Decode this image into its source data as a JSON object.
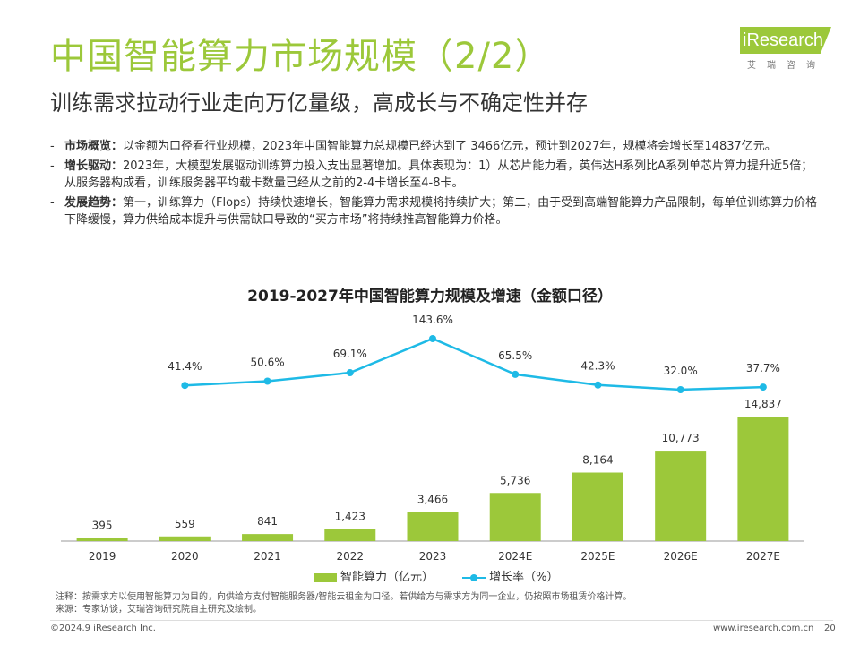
{
  "header": {
    "title": "中国智能算力市场规模（2/2）",
    "subtitle": "训练需求拉动行业走向万亿量级，高成长与不确定性并存"
  },
  "logo": {
    "word": "iResearch",
    "cn": "艾瑞咨询"
  },
  "bullets": [
    {
      "dash": "-",
      "head": "市场概览：",
      "text": "以金额为口径看行业规模，2023年中国智能算力总规模已经达到了 3466亿元，预计到2027年，规模将会增长至14837亿元。"
    },
    {
      "dash": "-",
      "head": "增长驱动：",
      "text": "2023年，大模型发展驱动训练算力投入支出显著增加。具体表现为：1）从芯片能力看，英伟达H系列比A系列单芯片算力提升近5倍；从服务器构成看，训练服务器平均载卡数量已经从之前的2-4卡增长至4-8卡。"
    },
    {
      "dash": "-",
      "head": "发展趋势：",
      "text": "第一，训练算力（Flops）持续快速增长，智能算力需求规模将持续扩大；第二，由于受到高端智能算力产品限制，每单位训练算力价格下降缓慢，算力供给成本提升与供需缺口导致的“买方市场”将持续推高智能算力价格。"
    }
  ],
  "chart_data": {
    "type": "bar",
    "title": "2019-2027年中国智能算力规模及增速（金额口径）",
    "categories": [
      "2019",
      "2020",
      "2021",
      "2022",
      "2023",
      "2024E",
      "2025E",
      "2026E",
      "2027E"
    ],
    "series": [
      {
        "name": "智能算力（亿元）",
        "type": "bar",
        "values": [
          395,
          559,
          841,
          1423,
          3466,
          5736,
          8164,
          10773,
          14837
        ],
        "labels": [
          "395",
          "559",
          "841",
          "1,423",
          "3,466",
          "5,736",
          "8,164",
          "10,773",
          "14,837"
        ],
        "color": "#9cc83a"
      },
      {
        "name": "增长率（%）",
        "type": "line",
        "values": [
          null,
          41.4,
          50.6,
          69.1,
          143.6,
          65.5,
          42.3,
          32.0,
          37.7
        ],
        "labels": [
          "",
          "41.4%",
          "50.6%",
          "69.1%",
          "143.6%",
          "65.5%",
          "42.3%",
          "32.0%",
          "37.7%"
        ],
        "color": "#1ebae6"
      }
    ],
    "grid": false,
    "legend": "bottom"
  },
  "notes": {
    "note": "注释：按需求方以使用智能算力为目的，向供给方支付智能服务器/智能云租金为口径。若供给方与需求方为同一企业，仍按照市场租赁价格计算。",
    "source": "来源：专家访谈，艾瑞咨询研究院自主研究及绘制。"
  },
  "footer": {
    "copyright": "©2024.9 iResearch Inc.",
    "site": "www.iresearch.com.cn",
    "page": "20"
  }
}
